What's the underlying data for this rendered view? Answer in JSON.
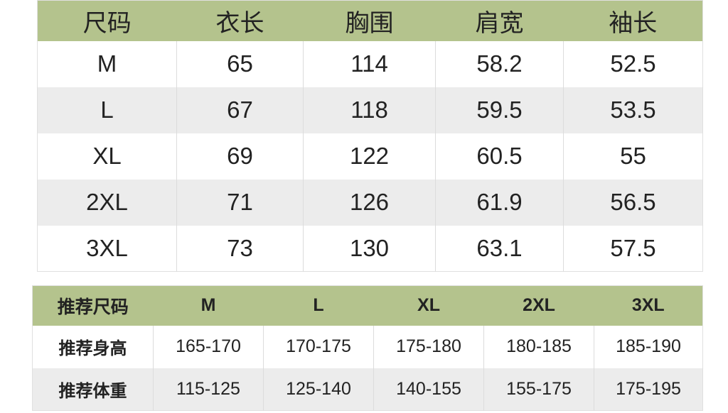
{
  "size_table": {
    "headers": [
      "尺码",
      "衣长",
      "胸围",
      "肩宽",
      "袖长"
    ],
    "rows": [
      [
        "M",
        "65",
        "114",
        "58.2",
        "52.5"
      ],
      [
        "L",
        "67",
        "118",
        "59.5",
        "53.5"
      ],
      [
        "XL",
        "69",
        "122",
        "60.5",
        "55"
      ],
      [
        "2XL",
        "71",
        "126",
        "61.9",
        "56.5"
      ],
      [
        "3XL",
        "73",
        "130",
        "63.1",
        "57.5"
      ]
    ]
  },
  "recommend_table": {
    "headers": [
      "推荐尺码",
      "M",
      "L",
      "XL",
      "2XL",
      "3XL"
    ],
    "rows": [
      [
        "推荐身高",
        "165-170",
        "170-175",
        "175-180",
        "180-185",
        "185-190"
      ],
      [
        "推荐体重",
        "115-125",
        "125-140",
        "140-155",
        "155-175",
        "175-195"
      ]
    ]
  },
  "colors": {
    "header_bg": "#b4c38d",
    "stripe_bg": "#ececec"
  }
}
